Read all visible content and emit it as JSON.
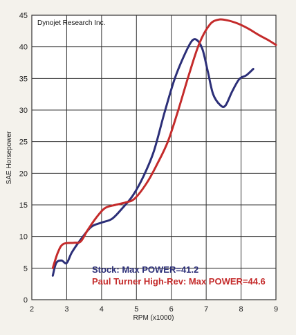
{
  "chart_data": {
    "type": "line",
    "source_label": "Dynojet Research Inc.",
    "xlabel": "RPM (x1000)",
    "ylabel": "SAE Horsepower",
    "xlim": [
      2,
      9
    ],
    "ylim": [
      0,
      45
    ],
    "x_ticks": [
      2,
      3,
      4,
      5,
      6,
      7,
      8,
      9
    ],
    "y_ticks": [
      0,
      5,
      10,
      15,
      20,
      25,
      30,
      35,
      40,
      45
    ],
    "grid": true,
    "series": [
      {
        "name": "Stock: Max POWER=41.2",
        "color": "#2c2f78",
        "points": [
          [
            2.6,
            3.8
          ],
          [
            2.7,
            5.8
          ],
          [
            2.85,
            6.2
          ],
          [
            3.0,
            5.8
          ],
          [
            3.15,
            7.5
          ],
          [
            3.4,
            9.5
          ],
          [
            3.7,
            11.5
          ],
          [
            4.0,
            12.2
          ],
          [
            4.3,
            12.8
          ],
          [
            4.6,
            14.5
          ],
          [
            4.9,
            16.5
          ],
          [
            5.2,
            19.5
          ],
          [
            5.5,
            23.5
          ],
          [
            5.8,
            29.5
          ],
          [
            6.1,
            35.0
          ],
          [
            6.4,
            39.0
          ],
          [
            6.6,
            41.0
          ],
          [
            6.75,
            41.0
          ],
          [
            6.9,
            39.5
          ],
          [
            7.05,
            36.0
          ],
          [
            7.2,
            32.5
          ],
          [
            7.4,
            30.8
          ],
          [
            7.55,
            30.7
          ],
          [
            7.75,
            33.0
          ],
          [
            7.95,
            34.9
          ],
          [
            8.15,
            35.5
          ],
          [
            8.35,
            36.5
          ]
        ]
      },
      {
        "name": "Paul Turner High-Rev: Max POWER=44.6",
        "color": "#c42b2b",
        "points": [
          [
            2.6,
            5.0
          ],
          [
            2.75,
            7.5
          ],
          [
            2.9,
            8.8
          ],
          [
            3.2,
            9.0
          ],
          [
            3.4,
            9.2
          ],
          [
            3.6,
            11.0
          ],
          [
            3.85,
            13.0
          ],
          [
            4.1,
            14.5
          ],
          [
            4.4,
            15.0
          ],
          [
            4.7,
            15.4
          ],
          [
            4.95,
            16.0
          ],
          [
            5.3,
            18.5
          ],
          [
            5.6,
            21.5
          ],
          [
            5.9,
            25.0
          ],
          [
            6.2,
            30.0
          ],
          [
            6.5,
            35.5
          ],
          [
            6.8,
            40.5
          ],
          [
            7.1,
            43.5
          ],
          [
            7.35,
            44.3
          ],
          [
            7.6,
            44.2
          ],
          [
            7.9,
            43.7
          ],
          [
            8.2,
            42.9
          ],
          [
            8.5,
            41.9
          ],
          [
            8.8,
            41.0
          ],
          [
            9.0,
            40.3
          ]
        ]
      }
    ]
  }
}
